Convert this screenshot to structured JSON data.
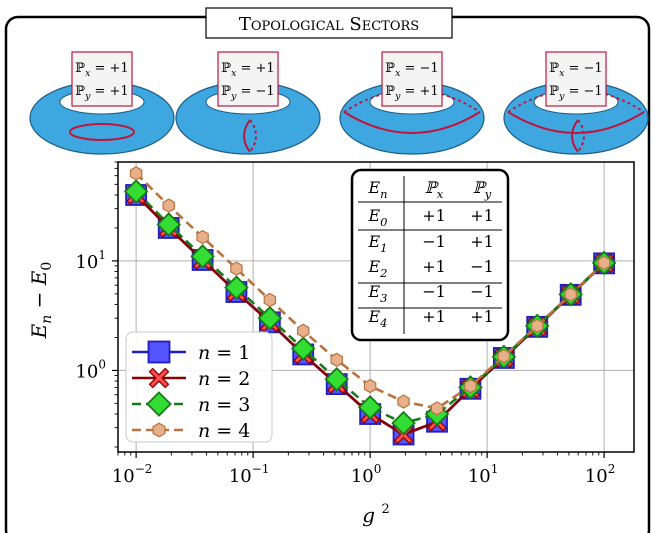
{
  "header": {
    "title": "Topological Sectors",
    "tori": [
      {
        "px": "ℙ_x = +1",
        "py": "ℙ_y = +1",
        "loop": "inner-ring"
      },
      {
        "px": "ℙ_x = +1",
        "py": "ℙ_y = −1",
        "loop": "meridian"
      },
      {
        "px": "ℙ_x = −1",
        "py": "ℙ_y = +1",
        "loop": "longitude"
      },
      {
        "px": "ℙ_x = −1",
        "py": "ℙ_y = −1",
        "loop": "both"
      }
    ]
  },
  "colors": {
    "torus": "#3ea7e0",
    "loop": "#c0143c",
    "label_border": "#c0143c",
    "series_1": "#1f1fbf",
    "series_1_fill": "#5555ff",
    "series_2": "#8b0000",
    "series_2_fill": "#ff4d4d",
    "series_3": "#1a7a1a",
    "series_3_fill": "#33dd33",
    "series_4": "#b8733f",
    "series_4_fill": "#e8b08a"
  },
  "table": {
    "header": [
      "E_n",
      "ℙ_x",
      "ℙ_y"
    ],
    "rows": [
      [
        "E_0",
        "+1",
        "+1"
      ],
      [
        "E_1",
        "−1",
        "+1"
      ],
      [
        "E_2",
        "+1",
        "−1"
      ],
      [
        "E_3",
        "−1",
        "−1"
      ],
      [
        "E_4",
        "+1",
        "+1"
      ]
    ]
  },
  "chart_data": {
    "type": "line",
    "xlabel": "g²",
    "ylabel": "E_n − E_0",
    "xscale": "log",
    "yscale": "log",
    "xlim": [
      0.007,
      180
    ],
    "ylim": [
      0.18,
      80
    ],
    "grid": true,
    "legend_position": "bottom-left",
    "x_ticks": [
      {
        "value": 0.01,
        "base": "10",
        "exp": "−2"
      },
      {
        "value": 0.1,
        "base": "10",
        "exp": "−1"
      },
      {
        "value": 1,
        "base": "10",
        "exp": "0"
      },
      {
        "value": 10,
        "base": "10",
        "exp": "1"
      },
      {
        "value": 100,
        "base": "10",
        "exp": "2"
      }
    ],
    "y_ticks": [
      {
        "value": 1,
        "base": "10",
        "exp": "0"
      },
      {
        "value": 10,
        "base": "10",
        "exp": "1"
      }
    ],
    "x": [
      0.01,
      0.019,
      0.037,
      0.072,
      0.139,
      0.268,
      0.518,
      1.0,
      1.93,
      3.73,
      7.2,
      13.9,
      26.8,
      51.8,
      100
    ],
    "series": [
      {
        "name": "n = 1",
        "marker": "square",
        "dash": "solid",
        "values": [
          40,
          20,
          10.2,
          5.2,
          2.75,
          1.4,
          0.75,
          0.4,
          0.26,
          0.34,
          0.68,
          1.3,
          2.5,
          4.9,
          9.5
        ]
      },
      {
        "name": "n = 2",
        "marker": "x",
        "dash": "solid",
        "values": [
          40,
          20,
          10.2,
          5.2,
          2.75,
          1.4,
          0.75,
          0.4,
          0.26,
          0.34,
          0.68,
          1.3,
          2.5,
          4.9,
          9.5
        ]
      },
      {
        "name": "n = 3",
        "marker": "diamond",
        "dash": "dashed",
        "values": [
          43,
          21.5,
          11,
          5.7,
          3.0,
          1.58,
          0.83,
          0.46,
          0.33,
          0.4,
          0.7,
          1.33,
          2.55,
          4.95,
          9.6
        ]
      },
      {
        "name": "n = 4",
        "marker": "hexagon",
        "dash": "dashed",
        "values": [
          63,
          32,
          16.5,
          8.5,
          4.4,
          2.3,
          1.25,
          0.72,
          0.52,
          0.45,
          0.72,
          1.35,
          2.55,
          4.95,
          9.6
        ]
      }
    ]
  }
}
